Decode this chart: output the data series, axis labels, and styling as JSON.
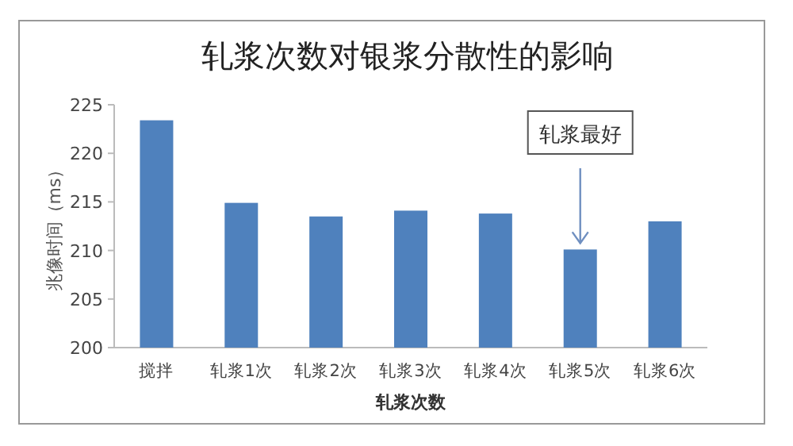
{
  "chart_data": {
    "type": "bar",
    "title": "轧浆次数对银浆分散性的影响",
    "xlabel": "轧浆次数",
    "ylabel": "兆像时间（ms）",
    "categories": [
      "搅拌",
      "轧浆1次",
      "轧浆2次",
      "轧浆3次",
      "轧浆4次",
      "轧浆5次",
      "轧浆6次"
    ],
    "series": [
      {
        "color": "#4f81bd",
        "values": [
          223.4,
          214.9,
          213.5,
          214.1,
          213.8,
          210.1,
          213.0
        ]
      }
    ],
    "ylim": [
      200,
      225
    ],
    "yticks": [
      200,
      205,
      210,
      215,
      220,
      225
    ],
    "grid": false,
    "annotations": [
      {
        "text": "轧浆最好",
        "x": "轧浆5次",
        "y": 210.1
      }
    ]
  }
}
